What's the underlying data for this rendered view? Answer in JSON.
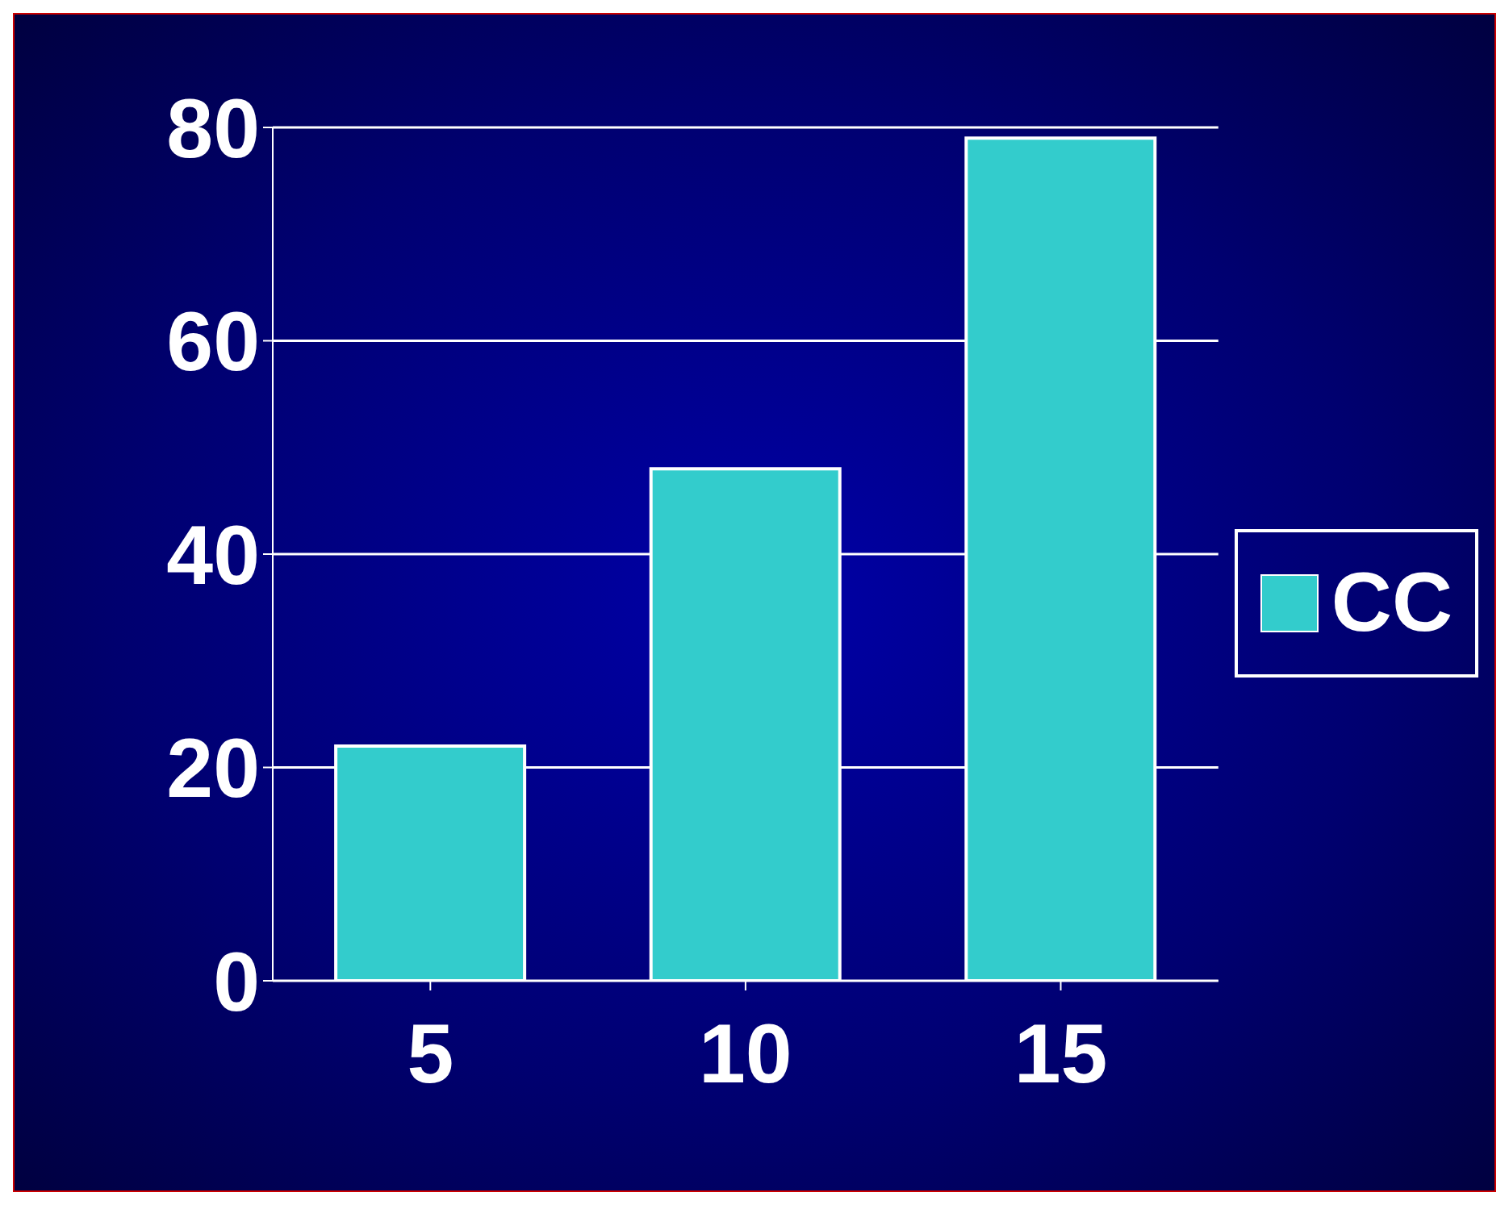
{
  "chart_data": {
    "type": "bar",
    "categories": [
      "5",
      "10",
      "15"
    ],
    "series": [
      {
        "name": "CC",
        "color": "#33cccc",
        "values": [
          22,
          48,
          79
        ]
      }
    ],
    "ylim": [
      0,
      80
    ],
    "yticks": [
      0,
      20,
      40,
      60,
      80
    ],
    "grid": "y",
    "legend": "right"
  }
}
